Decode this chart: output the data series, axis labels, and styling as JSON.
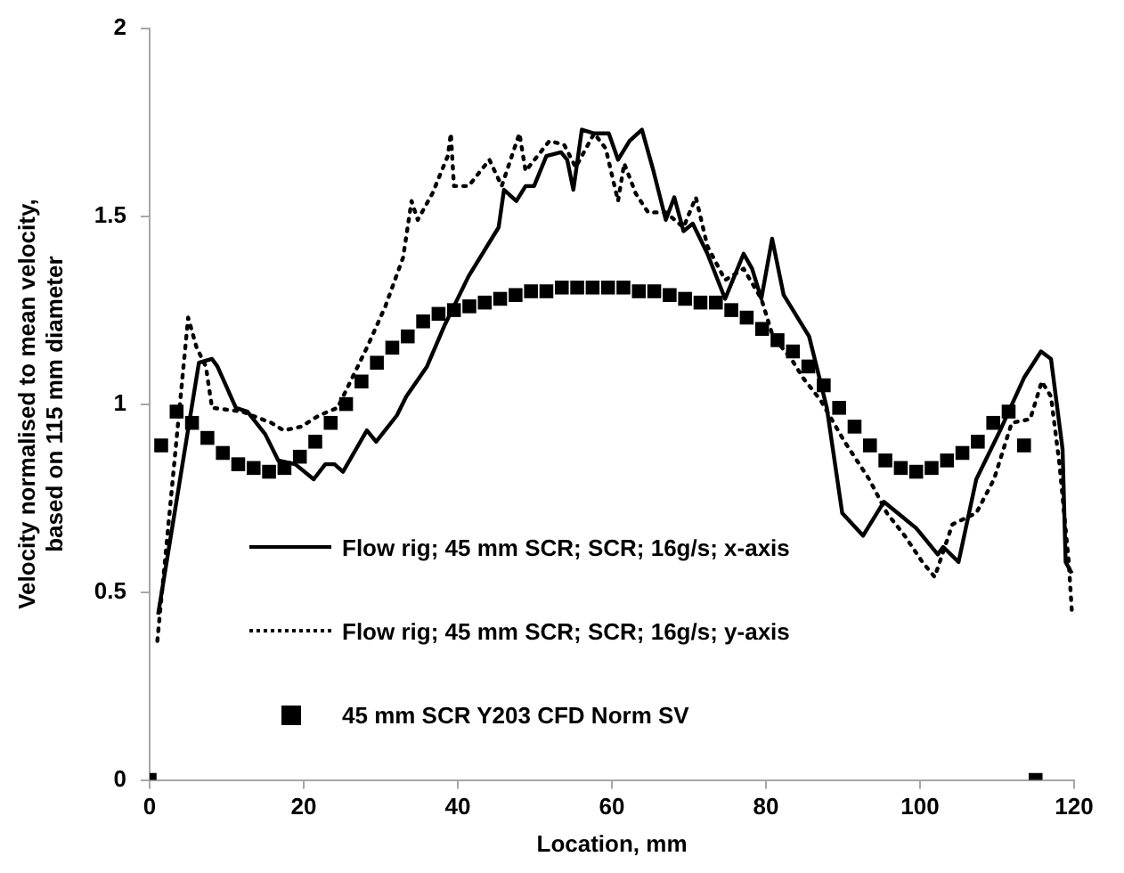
{
  "chart_data": {
    "type": "line",
    "xlabel": "Location, mm",
    "ylabel": "Velocity normalised to mean velocity,\nbased on 115 mm diameter",
    "xlim": [
      0,
      120
    ],
    "xticks": [
      0,
      20,
      40,
      60,
      80,
      100,
      120
    ],
    "ylim": [
      0,
      2
    ],
    "yticks": [
      0,
      0.5,
      1,
      1.5,
      2
    ],
    "grid": false,
    "legend": "left",
    "series": [
      {
        "name": "Flow rig;  45 mm SCR;  SCR;  16g/s;  x-axis",
        "color": "#000000",
        "line_style": "solid",
        "marker": "none",
        "x": [
          1.1,
          6.4,
          8.1,
          8.8,
          11.2,
          12.7,
          15.0,
          16.7,
          18.9,
          21.3,
          22.8,
          24.0,
          25.1,
          28.2,
          29.4,
          32.1,
          33.3,
          36.0,
          38.3,
          41.4,
          45.3,
          46.0,
          47.6,
          48.8,
          49.9,
          51.5,
          53.4,
          54.2,
          55.0,
          56.1,
          57.7,
          59.6,
          60.8,
          62.3,
          63.9,
          65.4,
          67.0,
          68.1,
          69.3,
          70.5,
          72.4,
          74.7,
          77.1,
          78.2,
          79.4,
          80.8,
          82.3,
          85.6,
          87.9,
          89.9,
          92.6,
          95.3,
          99.5,
          102.3,
          103.0,
          105.0,
          107.3,
          110.4,
          113.5,
          115.7,
          117.0,
          118.5,
          118.9,
          119.7
        ],
        "values": [
          0.44,
          1.11,
          1.12,
          1.1,
          0.99,
          0.98,
          0.92,
          0.85,
          0.84,
          0.8,
          0.84,
          0.84,
          0.82,
          0.93,
          0.9,
          0.97,
          1.02,
          1.1,
          1.21,
          1.34,
          1.47,
          1.57,
          1.54,
          1.58,
          1.58,
          1.66,
          1.67,
          1.65,
          1.57,
          1.73,
          1.72,
          1.72,
          1.65,
          1.7,
          1.73,
          1.62,
          1.49,
          1.55,
          1.46,
          1.48,
          1.4,
          1.28,
          1.4,
          1.36,
          1.28,
          1.44,
          1.29,
          1.18,
          0.99,
          0.71,
          0.65,
          0.74,
          0.67,
          0.6,
          0.62,
          0.58,
          0.8,
          0.93,
          1.07,
          1.14,
          1.12,
          0.88,
          0.58,
          0.55
        ]
      },
      {
        "name": "Flow rig;  45 mm SCR;  SCR;  16g/s;  y-axis",
        "color": "#000000",
        "line_style": "dotted",
        "marker": "none",
        "x": [
          1.0,
          5.0,
          6.1,
          7.3,
          8.1,
          12.0,
          15.8,
          17.4,
          19.7,
          22.0,
          24.4,
          28.2,
          30.6,
          32.9,
          34.0,
          34.8,
          36.7,
          38.7,
          39.1,
          39.5,
          41.4,
          44.1,
          45.7,
          48.0,
          48.8,
          51.9,
          53.8,
          55.3,
          57.7,
          59.2,
          60.8,
          61.6,
          63.1,
          64.7,
          67.0,
          69.3,
          70.9,
          72.4,
          74.7,
          77.1,
          79.4,
          80.9,
          83.3,
          84.8,
          87.1,
          90.2,
          93.4,
          95.7,
          98.0,
          100.3,
          101.9,
          104.2,
          107.3,
          109.6,
          111.9,
          114.3,
          115.8,
          117.0,
          118.1,
          119.3,
          119.7
        ],
        "values": [
          0.37,
          1.23,
          1.15,
          1.1,
          0.99,
          0.98,
          0.95,
          0.93,
          0.94,
          0.97,
          0.99,
          1.15,
          1.26,
          1.39,
          1.54,
          1.49,
          1.56,
          1.66,
          1.72,
          1.58,
          1.58,
          1.65,
          1.58,
          1.72,
          1.62,
          1.7,
          1.69,
          1.63,
          1.72,
          1.68,
          1.54,
          1.64,
          1.56,
          1.51,
          1.51,
          1.47,
          1.55,
          1.42,
          1.33,
          1.36,
          1.28,
          1.18,
          1.12,
          1.07,
          1.01,
          0.9,
          0.8,
          0.71,
          0.65,
          0.58,
          0.54,
          0.68,
          0.71,
          0.8,
          0.95,
          0.96,
          1.06,
          1.02,
          0.84,
          0.58,
          0.45
        ]
      },
      {
        "name": "45 mm SCR Y203 CFD Norm SV",
        "type": "scatter",
        "color": "#000000",
        "marker": "square",
        "x": [
          0,
          1.5,
          3.5,
          5.5,
          7.5,
          9.5,
          11.5,
          13.5,
          15.5,
          17.5,
          19.5,
          21.5,
          23.5,
          25.5,
          27.5,
          29.5,
          31.5,
          33.5,
          35.5,
          37.5,
          39.5,
          41.5,
          43.5,
          45.5,
          47.5,
          49.5,
          51.5,
          53.5,
          55.5,
          57.5,
          59.5,
          61.5,
          63.5,
          65.5,
          67.5,
          69.5,
          71.5,
          73.5,
          75.5,
          77.5,
          79.5,
          81.5,
          83.5,
          85.5,
          87.5,
          89.5,
          91.5,
          93.5,
          95.5,
          97.5,
          99.5,
          101.5,
          103.5,
          105.5,
          107.5,
          109.5,
          111.5,
          113.5,
          115
        ],
        "values": [
          0,
          0.89,
          0.98,
          0.95,
          0.91,
          0.87,
          0.84,
          0.83,
          0.82,
          0.83,
          0.86,
          0.9,
          0.95,
          1.0,
          1.06,
          1.11,
          1.15,
          1.18,
          1.22,
          1.24,
          1.25,
          1.26,
          1.27,
          1.28,
          1.29,
          1.3,
          1.3,
          1.31,
          1.31,
          1.31,
          1.31,
          1.31,
          1.3,
          1.3,
          1.29,
          1.28,
          1.27,
          1.27,
          1.25,
          1.23,
          1.2,
          1.17,
          1.14,
          1.1,
          1.05,
          0.99,
          0.94,
          0.89,
          0.85,
          0.83,
          0.82,
          0.83,
          0.85,
          0.87,
          0.9,
          0.95,
          0.98,
          0.89,
          0
        ]
      }
    ]
  }
}
